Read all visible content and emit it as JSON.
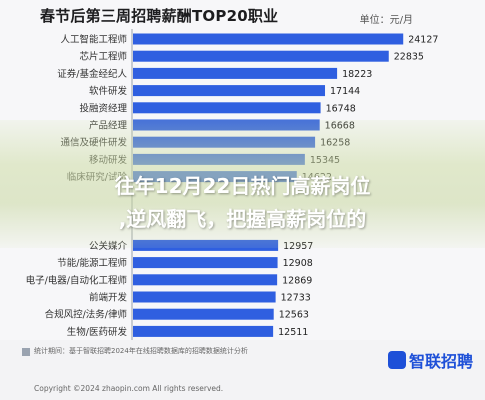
{
  "chart_data": {
    "type": "bar",
    "orientation": "horizontal",
    "title": "春节后第三周招聘薪酬TOP20职业",
    "unit": "单位：元/月",
    "categories": [
      "人工智能工程师",
      "芯片工程师",
      "证券/基金经纪人",
      "软件研发",
      "投融资经理",
      "产品经理",
      "通信及硬件研发",
      "移动研发",
      "临床研究/试验",
      "",
      "",
      "",
      "公关媒介",
      "节能/能源工程师",
      "电子/电器/自动化工程师",
      "前端开发",
      "合规风控/法务/律师",
      "生物/医药研发"
    ],
    "values": [
      24127,
      22835,
      18223,
      17144,
      16748,
      16668,
      16258,
      15345,
      14622,
      null,
      null,
      null,
      12957,
      12908,
      12869,
      12733,
      12563,
      12511
    ],
    "value_labels": [
      "24127",
      "22835",
      "18223",
      "17144",
      "16748",
      "16668",
      "16258",
      "15345",
      "14622",
      "",
      "",
      "",
      "12957",
      "12908",
      "12869",
      "12733",
      "12563",
      "12511"
    ],
    "bar_color": "#2f5fe0",
    "xlim": [
      0,
      25000
    ],
    "grid": false,
    "legend": "none"
  },
  "overlay": {
    "line1": "往年12月22日热门高薪岗位",
    "line2": ",逆风翻飞，把握高薪岗位的"
  },
  "footer": {
    "note": "统计期间：基于智联招聘2024年在线招聘数据库的招聘数据统计分析",
    "copyright": "Copyright ©2024 zhaopin.com All rights reserved.",
    "brand_name": "智联招聘"
  }
}
